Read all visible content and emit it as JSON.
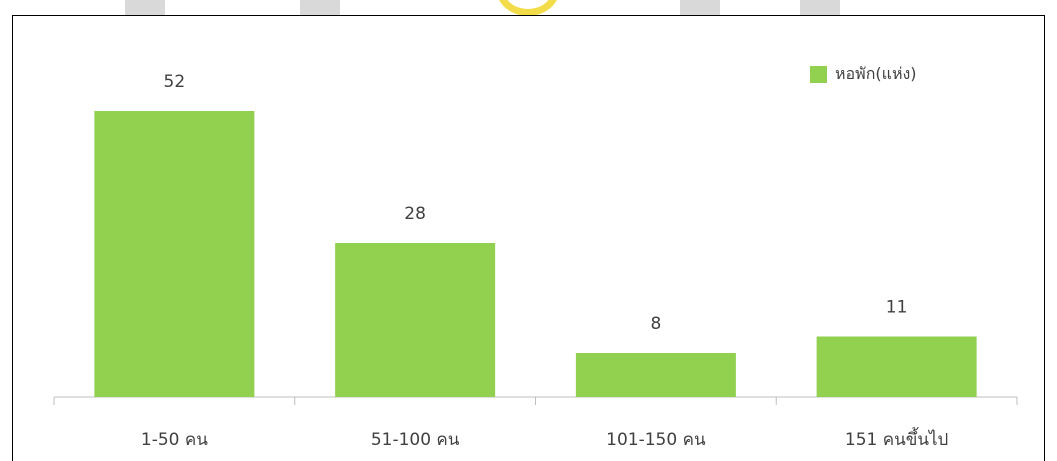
{
  "colors": {
    "bar": "#92d050",
    "axis": "#bfbfbf",
    "text": "#404040"
  },
  "chart_data": {
    "type": "bar",
    "categories": [
      "1-50 คน",
      "51-100 คน",
      "101-150 คน",
      "151 คนขึ้นไป"
    ],
    "series": [
      {
        "name": "หอพัก(แห่ง)",
        "values": [
          52,
          28,
          8,
          11
        ]
      }
    ],
    "data_labels": [
      "52",
      "28",
      "8",
      "11"
    ],
    "ylim": [
      0,
      60
    ],
    "grid": false,
    "legend_position": "top-right"
  }
}
